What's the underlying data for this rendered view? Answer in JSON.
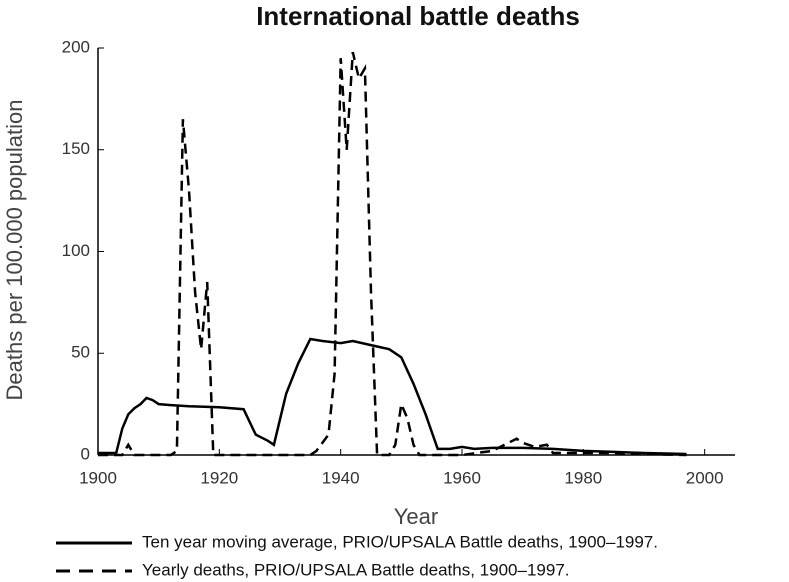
{
  "chart_data": {
    "type": "line",
    "title": "International battle deaths",
    "x_label": "Year",
    "y_label": "Deaths per 100.000 population",
    "xlim": [
      1900,
      2005
    ],
    "xticks": [
      1900,
      1920,
      1940,
      1960,
      1980,
      2000
    ],
    "ylim": [
      0,
      200
    ],
    "yticks": [
      0,
      50,
      100,
      150,
      200
    ],
    "series": [
      {
        "name": "Ten year moving average, PRIO/UPSALA Battle deaths, 1900–1997.",
        "color": "#000000",
        "dash": "solid",
        "x": [
          1900,
          1903,
          1904,
          1905,
          1906,
          1907,
          1908,
          1909,
          1910,
          1912,
          1915,
          1920,
          1924,
          1926,
          1928,
          1929,
          1931,
          1933,
          1935,
          1937,
          1940,
          1942,
          1945,
          1948,
          1950,
          1952,
          1954,
          1956,
          1958,
          1960,
          1962,
          1965,
          1970,
          1975,
          1980,
          1985,
          1990,
          1997
        ],
        "values": [
          1,
          1,
          13,
          20,
          23,
          25,
          28,
          27,
          25,
          24.5,
          24,
          23.5,
          22.5,
          10,
          7,
          5,
          30,
          45,
          57,
          56,
          55,
          56,
          54,
          52,
          48,
          35,
          20,
          3,
          3,
          4,
          3,
          3.5,
          3.5,
          3,
          2,
          1.5,
          1,
          0.5
        ]
      },
      {
        "name": "Yearly deaths, PRIO/UPSALA Battle deaths, 1900–1997.",
        "color": "#000000",
        "dash": "dashed",
        "x": [
          1900,
          1904,
          1905,
          1906,
          1912,
          1913,
          1914,
          1915,
          1916,
          1917,
          1918,
          1919,
          1935,
          1936,
          1938,
          1939,
          1940,
          1941,
          1942,
          1943,
          1944,
          1945,
          1946,
          1948,
          1949,
          1950,
          1951,
          1952,
          1953,
          1960,
          1965,
          1967,
          1969,
          1970,
          1972,
          1974,
          1975,
          1980,
          1985,
          1990,
          1997
        ],
        "values": [
          0,
          0,
          5,
          0,
          0,
          2,
          165,
          130,
          80,
          52,
          85,
          0,
          0,
          2,
          10,
          40,
          195,
          150,
          198,
          185,
          190,
          80,
          0,
          0,
          5,
          25,
          18,
          5,
          0,
          0,
          2,
          5,
          8,
          6,
          4,
          5,
          1,
          1,
          1,
          0.5,
          0
        ]
      }
    ]
  }
}
